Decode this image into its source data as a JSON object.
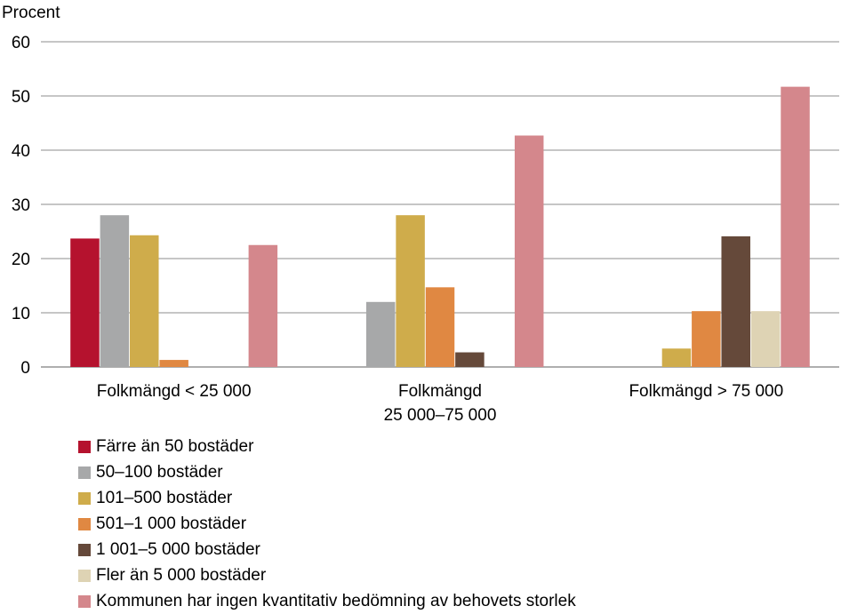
{
  "chart_data": {
    "type": "bar",
    "ylabel": "Procent",
    "ylim": [
      0,
      60
    ],
    "yticks": [
      0,
      10,
      20,
      30,
      40,
      50,
      60
    ],
    "grid": true,
    "legend_position": "bottom",
    "categories": [
      [
        "Folkmängd < 25 000"
      ],
      [
        "Folkmängd",
        "25 000–75 000"
      ],
      [
        "Folkmängd > 75 000"
      ]
    ],
    "series": [
      {
        "name": "Färre än 50 bostäder",
        "color": "#b5122e",
        "values": [
          23.7,
          0,
          0
        ]
      },
      {
        "name": "50–100 bostäder",
        "color": "#a7a8a9",
        "values": [
          28.0,
          12.0,
          0
        ]
      },
      {
        "name": "101–500 bostäder",
        "color": "#cfac4b",
        "values": [
          24.3,
          28.0,
          3.4
        ]
      },
      {
        "name": "501–1 000 bostäder",
        "color": "#e08842",
        "values": [
          1.3,
          14.7,
          10.3
        ]
      },
      {
        "name": "1 001–5 000 bostäder",
        "color": "#65493a",
        "values": [
          0,
          2.7,
          24.1
        ]
      },
      {
        "name": "Fler än 5 000 bostäder",
        "color": "#ded3b4",
        "values": [
          0,
          0,
          10.3
        ]
      },
      {
        "name": "Kommunen har ingen kvantitativ bedömning av behovets storlek",
        "color": "#d4878c",
        "values": [
          22.5,
          42.7,
          51.7
        ]
      }
    ]
  }
}
